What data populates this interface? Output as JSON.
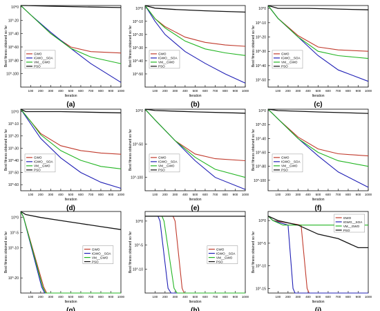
{
  "figure": {
    "colors": {
      "GWO": "#c0392b",
      "IGWO_SOA": "#1f1fb5",
      "VM_GWO": "#22b522",
      "PSO": "#111111"
    }
  },
  "chart_data": [
    {
      "panel_label": "(a)",
      "type": "line",
      "xlabel": "Iteration",
      "ylabel": "Best fitness obtained so far",
      "xlim": [
        1,
        1000
      ],
      "yscale": "log",
      "ylim": [
        1e-120,
        100.0
      ],
      "yticks": [
        "10^0",
        "10^-20",
        "10^-40",
        "10^-60",
        "10^-80",
        "10^-100"
      ],
      "xticks": [
        100,
        200,
        300,
        400,
        500,
        600,
        700,
        800,
        900,
        1000
      ],
      "legend": [
        "GWO",
        "IGWO__SOA",
        "VM__GWO",
        "PSO"
      ],
      "legend_position": "center-left",
      "series": [
        {
          "name": "GWO",
          "x": [
            1,
            100,
            300,
            500,
            700,
            1000
          ],
          "y": [
            "1e2",
            "1e-12",
            "1e-40",
            "1e-60",
            "1e-67",
            "1e-69"
          ]
        },
        {
          "name": "IGWO__SOA",
          "x": [
            1,
            100,
            300,
            500,
            700,
            1000
          ],
          "y": [
            "1e2",
            "1e-12",
            "1e-38",
            "1e-62",
            "1e-85",
            "1e-113"
          ]
        },
        {
          "name": "VM__GWO",
          "x": [
            1,
            100,
            300,
            500,
            700,
            1000
          ],
          "y": [
            "1e2",
            "1e-12",
            "1e-40",
            "1e-62",
            "1e-75",
            "1e-85"
          ]
        },
        {
          "name": "PSO",
          "x": [
            1,
            50,
            300,
            600,
            1000
          ],
          "y": [
            "1e3",
            "1e2",
            "1e1",
            "1e0",
            "1e-1"
          ]
        }
      ]
    },
    {
      "panel_label": "(b)",
      "type": "line",
      "xlabel": "Iteration",
      "ylabel": "Best fitness obtained so far",
      "xlim": [
        1,
        1000
      ],
      "yscale": "log",
      "ylim": [
        1e-60,
        100.0
      ],
      "yticks": [
        "10^0",
        "10^-10",
        "10^-20",
        "10^-30",
        "10^-40",
        "10^-50"
      ],
      "xticks": [
        100,
        200,
        300,
        400,
        500,
        600,
        700,
        800,
        900,
        1000
      ],
      "legend": [
        "GWO",
        "IGWO__SOA",
        "VM__GWO",
        "PSO"
      ],
      "legend_position": "center-left",
      "series": [
        {
          "name": "GWO",
          "x": [
            1,
            100,
            200,
            400,
            600,
            800,
            1000
          ],
          "y": [
            "1e2",
            "1e-8",
            "1e-14",
            "1e-22",
            "1e-26",
            "1e-28",
            "1e-29"
          ]
        },
        {
          "name": "IGWO__SOA",
          "x": [
            1,
            100,
            200,
            400,
            600,
            800,
            1000
          ],
          "y": [
            "1e2",
            "1e-10",
            "1e-20",
            "1e-33",
            "1e-42",
            "1e-50",
            "1e-57"
          ]
        },
        {
          "name": "VM__GWO",
          "x": [
            1,
            100,
            200,
            400,
            600,
            800,
            1000
          ],
          "y": [
            "1e2",
            "1e-8",
            "1e-15",
            "1e-25",
            "1e-31",
            "1e-34",
            "1e-36"
          ]
        },
        {
          "name": "PSO",
          "x": [
            1,
            100,
            300,
            600,
            1000
          ],
          "y": [
            "1e2",
            "1e0",
            "1e-1",
            "1e-2",
            "1e-3"
          ]
        }
      ]
    },
    {
      "panel_label": "(c)",
      "type": "line",
      "xlabel": "Iteration",
      "ylabel": "Best fitness obtained so far",
      "xlim": [
        1,
        1000
      ],
      "yscale": "log",
      "ylim": [
        1e-55,
        100.0
      ],
      "yticks": [
        "10^0",
        "10^-10",
        "10^-20",
        "10^-30",
        "10^-40",
        "10^-50"
      ],
      "xticks": [
        100,
        200,
        300,
        400,
        500,
        600,
        700,
        800,
        900,
        1000
      ],
      "legend": [
        "GWO",
        "IGWO__SOA",
        "VM__GWO",
        "PSO"
      ],
      "legend_position": "center-left",
      "series": [
        {
          "name": "GWO",
          "x": [
            1,
            100,
            300,
            500,
            700,
            1000
          ],
          "y": [
            "1e2",
            "1e-7",
            "1e-19",
            "1e-27",
            "1e-29",
            "1e-30"
          ]
        },
        {
          "name": "IGWO__SOA",
          "x": [
            1,
            100,
            300,
            500,
            700,
            1000
          ],
          "y": [
            "1e2",
            "1e-7",
            "1e-20",
            "1e-33",
            "1e-43",
            "1e-51"
          ]
        },
        {
          "name": "VM__GWO",
          "x": [
            1,
            100,
            300,
            500,
            700,
            1000
          ],
          "y": [
            "1e2",
            "1e-7",
            "1e-20",
            "1e-30",
            "1e-33",
            "1e-35"
          ]
        },
        {
          "name": "PSO",
          "x": [
            1,
            100,
            400,
            1000
          ],
          "y": [
            "1e2",
            "1e0",
            "1e0",
            "1e-1"
          ]
        }
      ]
    },
    {
      "panel_label": "(d)",
      "type": "line",
      "xlabel": "Iteration",
      "ylabel": "Best fitness obtained so far",
      "xlim": [
        1,
        1000
      ],
      "yscale": "log",
      "ylim": [
        1e-65,
        100.0
      ],
      "yticks": [
        "10^0",
        "10^-10",
        "10^-20",
        "10^-30",
        "10^-40",
        "10^-50",
        "10^-60"
      ],
      "xticks": [
        100,
        200,
        300,
        400,
        500,
        600,
        700,
        800,
        900,
        1000
      ],
      "legend": [
        "GWO",
        "IGWO__SOA",
        "VM__GWO",
        "PSO"
      ],
      "legend_position": "center-left",
      "series": [
        {
          "name": "GWO",
          "x": [
            1,
            100,
            200,
            400,
            600,
            800,
            1000
          ],
          "y": [
            "1e2",
            "1e-8",
            "1e-18",
            "1e-28",
            "1e-32",
            "1e-34",
            "1e-35"
          ]
        },
        {
          "name": "IGWO__SOA",
          "x": [
            1,
            100,
            200,
            400,
            600,
            800,
            1000
          ],
          "y": [
            "1e2",
            "1e-10",
            "1e-22",
            "1e-38",
            "1e-50",
            "1e-58",
            "1e-63"
          ]
        },
        {
          "name": "VM__GWO",
          "x": [
            1,
            100,
            200,
            400,
            600,
            800,
            1000
          ],
          "y": [
            "1e2",
            "1e-8",
            "1e-19",
            "1e-32",
            "1e-40",
            "1e-45",
            "1e-47"
          ]
        },
        {
          "name": "PSO",
          "x": [
            1,
            50,
            400,
            1000
          ],
          "y": [
            "1e2",
            "1e0",
            "1e0",
            "1e-1"
          ]
        }
      ]
    },
    {
      "panel_label": "(e)",
      "type": "line",
      "xlabel": "Iteration",
      "ylabel": "Best fitness obtained so far",
      "xlim": [
        1,
        1000
      ],
      "yscale": "log",
      "ylim": [
        1e-120,
        100.0
      ],
      "yticks": [
        "10^0",
        "10^-50",
        "10^-100"
      ],
      "xticks": [
        100,
        200,
        300,
        400,
        500,
        600,
        700,
        800,
        900,
        1000
      ],
      "legend": [
        "GWO",
        "IGWO__SOA",
        "VM__GWO",
        "PSO"
      ],
      "legend_position": "center-left",
      "series": [
        {
          "name": "GWO",
          "x": [
            1,
            100,
            300,
            500,
            700,
            1000
          ],
          "y": [
            "1e2",
            "1e-14",
            "1e-45",
            "1e-65",
            "1e-72",
            "1e-75"
          ]
        },
        {
          "name": "IGWO__SOA",
          "x": [
            1,
            100,
            300,
            500,
            700,
            1000
          ],
          "y": [
            "1e2",
            "1e-14",
            "1e-45",
            "1e-75",
            "1e-100",
            "1e-118"
          ]
        },
        {
          "name": "VM__GWO",
          "x": [
            1,
            100,
            300,
            500,
            700,
            1000
          ],
          "y": [
            "1e2",
            "1e-14",
            "1e-45",
            "1e-70",
            "1e-88",
            "1e-100"
          ]
        },
        {
          "name": "PSO",
          "x": [
            1,
            100,
            500,
            1000
          ],
          "y": [
            "1e2",
            "1e0",
            "1e-2",
            "1e-4"
          ]
        }
      ]
    },
    {
      "panel_label": "(f)",
      "type": "line",
      "xlabel": "Iteration",
      "ylabel": "Best fitness obtained so far",
      "xlim": [
        1,
        1000
      ],
      "yscale": "log",
      "ylim": [
        1e-115,
        100.0
      ],
      "yticks": [
        "10^0",
        "10^-20",
        "10^-40",
        "10^-60",
        "10^-80",
        "10^-100"
      ],
      "xticks": [
        100,
        200,
        300,
        400,
        500,
        600,
        700,
        800,
        900,
        1000
      ],
      "legend": [
        "GWO",
        "IGWO__SOA",
        "VM__GWO",
        "PSO"
      ],
      "legend_position": "center-left",
      "series": [
        {
          "name": "GWO",
          "x": [
            1,
            100,
            300,
            500,
            700,
            1000
          ],
          "y": [
            "1e2",
            "1e-12",
            "1e-38",
            "1e-55",
            "1e-62",
            "1e-65"
          ]
        },
        {
          "name": "IGWO__SOA",
          "x": [
            1,
            100,
            300,
            500,
            700,
            1000
          ],
          "y": [
            "1e2",
            "1e-12",
            "1e-40",
            "1e-65",
            "1e-88",
            "1e-110"
          ]
        },
        {
          "name": "VM__GWO",
          "x": [
            1,
            100,
            300,
            500,
            700,
            1000
          ],
          "y": [
            "1e2",
            "1e-12",
            "1e-40",
            "1e-60",
            "1e-72",
            "1e-80"
          ]
        },
        {
          "name": "PSO",
          "x": [
            1,
            100,
            500,
            1000
          ],
          "y": [
            "1e2",
            "1e0",
            "1e-2",
            "1e-4"
          ]
        }
      ]
    },
    {
      "panel_label": "(g)",
      "type": "line",
      "xlabel": "Iteration",
      "ylabel": "Best fitness obtained so far",
      "xlim": [
        1,
        1000
      ],
      "yscale": "log",
      "ylim": [
        1e-25,
        100.0
      ],
      "yticks": [
        "10^0",
        "10^-5",
        "10^-10",
        "10^-20"
      ],
      "xticks": [
        100,
        200,
        300,
        400,
        500,
        600,
        700,
        800,
        900,
        1000
      ],
      "legend": [
        "GWO",
        "IGWO__SOA",
        "VM__GWO",
        "PSO"
      ],
      "legend_position": "center-right",
      "series": [
        {
          "name": "GWO",
          "x": [
            1,
            30,
            230,
            260,
            1000
          ],
          "y": [
            "1e2",
            "1e0",
            "1e-23",
            "1e-25",
            "1e-25"
          ]
        },
        {
          "name": "IGWO__SOA",
          "x": [
            1,
            30,
            210,
            240,
            1000
          ],
          "y": [
            "1e2",
            "1e0",
            "1e-23",
            "1e-25",
            "1e-25"
          ]
        },
        {
          "name": "VM__GWO",
          "x": [
            1,
            30,
            220,
            250,
            1000
          ],
          "y": [
            "1e2",
            "1e0",
            "1e-23",
            "1e-25",
            "1e-25"
          ]
        },
        {
          "name": "PSO",
          "x": [
            1,
            50,
            200,
            400,
            600,
            800,
            1000
          ],
          "y": [
            "1e2",
            "1e1",
            "1e0",
            "1e-1",
            "1e-2",
            "1e-3",
            "1e-4"
          ]
        }
      ]
    },
    {
      "panel_label": "(h)",
      "type": "line",
      "xlabel": "Iteration",
      "ylabel": "Best fitness obtained so far",
      "xlim": [
        1,
        1000
      ],
      "yscale": "log",
      "ylim": [
        1e-15,
        100.0
      ],
      "yticks": [
        "10^0",
        "10^-5",
        "10^-10"
      ],
      "xticks": [
        100,
        200,
        300,
        400,
        500,
        600,
        700,
        800,
        900,
        1000
      ],
      "legend": [
        "GWO",
        "IGWO__SOA",
        "VM__GWO",
        "PSO"
      ],
      "legend_position": "center-right",
      "series": [
        {
          "name": "GWO",
          "x": [
            1,
            280,
            300,
            370,
            390,
            1000
          ],
          "y": [
            "1e1",
            "1e1",
            "1e0",
            "1e-14",
            "1e-15",
            "1e-15"
          ]
        },
        {
          "name": "IGWO__SOA",
          "x": [
            1,
            130,
            150,
            230,
            260,
            1000
          ],
          "y": [
            "1e1",
            "1e1",
            "1e0",
            "1e-14",
            "1e-15",
            "1e-15"
          ]
        },
        {
          "name": "VM__GWO",
          "x": [
            1,
            170,
            190,
            290,
            320,
            1000
          ],
          "y": [
            "1e1",
            "1e1",
            "1e0",
            "1e-14",
            "1e-15",
            "1e-15"
          ]
        },
        {
          "name": "PSO",
          "x": [
            1,
            1000
          ],
          "y": [
            "1e1",
            "1e1"
          ]
        }
      ]
    },
    {
      "panel_label": "(i)",
      "type": "line",
      "xlabel": "Iteration",
      "ylabel": "Best fitness obtained so far",
      "xlim": [
        1,
        1000
      ],
      "yscale": "log",
      "ylim": [
        1e-16,
        100.0
      ],
      "yticks": [
        "10^0",
        "10^-5",
        "10^-10",
        "10^-15"
      ],
      "xticks": [
        100,
        200,
        300,
        400,
        500,
        600,
        700,
        800,
        900,
        1000
      ],
      "legend": [
        "GWO",
        "IGWO__SOA",
        "VM__GWO",
        "PSO"
      ],
      "legend_position": "top-right",
      "series": [
        {
          "name": "GWO",
          "x": [
            1,
            50,
            330,
            390,
            410,
            1000
          ],
          "y": [
            "1e1",
            "1e0",
            "1e-1",
            "1e-15",
            "1e-16",
            "1e-16"
          ]
        },
        {
          "name": "IGWO__SOA",
          "x": [
            1,
            50,
            200,
            250,
            270,
            1000
          ],
          "y": [
            "1e1",
            "1e0",
            "1e-1",
            "1e-15",
            "1e-16",
            "1e-16"
          ]
        },
        {
          "name": "VM__GWO",
          "x": [
            1,
            50,
            150,
            1000
          ],
          "y": [
            "1e1",
            "1e0",
            "1e-1",
            "1e-1"
          ]
        },
        {
          "name": "PSO",
          "x": [
            1,
            100,
            300,
            500,
            700,
            900,
            1000
          ],
          "y": [
            "1e1",
            "1e0",
            "1e-1",
            "1e-3",
            "1e-4",
            "1e-6",
            "1e-6"
          ]
        }
      ]
    }
  ]
}
